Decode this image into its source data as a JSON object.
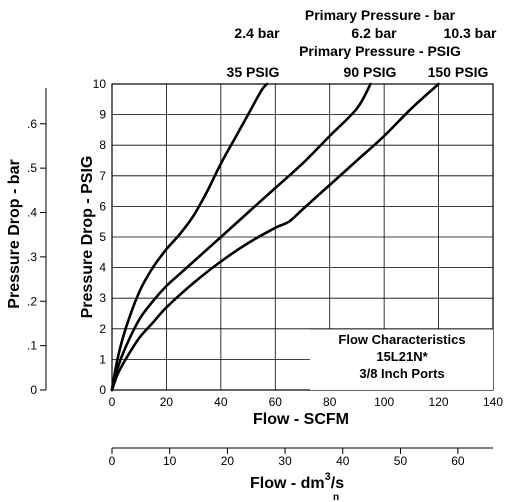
{
  "chart_data": {
    "type": "line",
    "header": {
      "bar_title": "Primary Pressure - bar",
      "bar_labels": [
        "2.4 bar",
        "6.2 bar",
        "10.3 bar"
      ],
      "psig_title": "Primary Pressure - PSIG",
      "psig_labels": [
        "35 PSIG",
        "90 PSIG",
        "150 PSIG"
      ]
    },
    "xlabel": "Flow - SCFM",
    "ylabel": "Pressure Drop - PSIG",
    "xlim": [
      0,
      140
    ],
    "ylim": [
      0,
      10
    ],
    "x_ticks": [
      "0",
      "20",
      "40",
      "60",
      "80",
      "100",
      "120",
      "140"
    ],
    "y_ticks": [
      "0",
      "1",
      "2",
      "3",
      "4",
      "5",
      "6",
      "7",
      "8",
      "9",
      "10"
    ],
    "secondary_y": {
      "label": "Pressure Drop - bar",
      "ticks": [
        {
          "label": "0",
          "psig": 0
        },
        {
          "label": ".1",
          "psig": 1.45
        },
        {
          "label": ".2",
          "psig": 2.9
        },
        {
          "label": ".3",
          "psig": 4.35
        },
        {
          "label": ".4",
          "psig": 5.8
        },
        {
          "label": ".5",
          "psig": 7.25
        },
        {
          "label": ".6",
          "psig": 8.7
        }
      ]
    },
    "secondary_x": {
      "label": "Flow - dm",
      "label_sup": "3",
      "label_tail": "/s",
      "label_sub": "n",
      "ticks": [
        {
          "label": "0",
          "scfm": 0
        },
        {
          "label": "10",
          "scfm": 21.2
        },
        {
          "label": "20",
          "scfm": 42.4
        },
        {
          "label": "30",
          "scfm": 63.6
        },
        {
          "label": "40",
          "scfm": 84.8
        },
        {
          "label": "50",
          "scfm": 106
        },
        {
          "label": "60",
          "scfm": 127.1
        }
      ]
    },
    "series": [
      {
        "name": "35 PSIG",
        "x": [
          0,
          2,
          5,
          10,
          15,
          20,
          25,
          30,
          35,
          40,
          45,
          50,
          55,
          57
        ],
        "y": [
          0,
          1.0,
          2.0,
          3.2,
          4.0,
          4.6,
          5.1,
          5.7,
          6.5,
          7.4,
          8.2,
          9.0,
          9.8,
          10
        ]
      },
      {
        "name": "90 PSIG",
        "x": [
          0,
          2,
          5,
          10,
          15,
          20,
          25,
          30,
          40,
          50,
          60,
          70,
          80,
          90,
          95
        ],
        "y": [
          0,
          0.7,
          1.4,
          2.3,
          2.9,
          3.4,
          3.8,
          4.2,
          5.0,
          5.8,
          6.6,
          7.4,
          8.3,
          9.2,
          10
        ]
      },
      {
        "name": "150 PSIG",
        "x": [
          0,
          2,
          5,
          10,
          15,
          20,
          30,
          40,
          50,
          60,
          65,
          70,
          80,
          90,
          100,
          110,
          120
        ],
        "y": [
          0,
          0.5,
          1.0,
          1.7,
          2.2,
          2.7,
          3.5,
          4.2,
          4.8,
          5.3,
          5.5,
          5.9,
          6.7,
          7.5,
          8.3,
          9.2,
          10
        ]
      }
    ],
    "annotation": [
      "Flow Characteristics",
      "15L21N*",
      "3/8 Inch Ports"
    ],
    "grid": true
  }
}
